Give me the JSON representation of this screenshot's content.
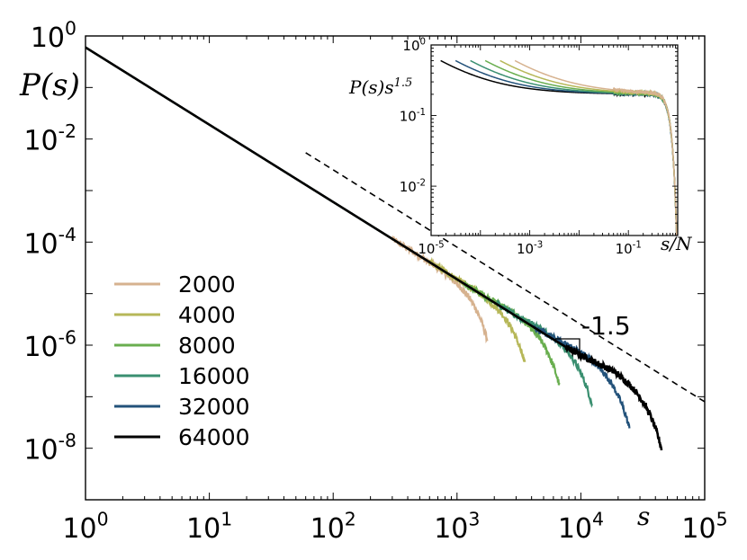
{
  "chart_data": [
    {
      "id": "main",
      "type": "line",
      "xscale": "log",
      "yscale": "log",
      "xlim": [
        1,
        100000
      ],
      "ylim": [
        1e-09,
        1
      ],
      "ylabel": "P(s)",
      "xlabel": "s",
      "x_ticks": [
        {
          "v": 1,
          "base": "10",
          "exp": "0"
        },
        {
          "v": 10,
          "base": "10",
          "exp": "1"
        },
        {
          "v": 100,
          "base": "10",
          "exp": "2"
        },
        {
          "v": 1000,
          "base": "10",
          "exp": "3"
        },
        {
          "v": 10000,
          "base": "10",
          "exp": "4"
        },
        {
          "v": 100000,
          "base": "10",
          "exp": "5"
        }
      ],
      "y_ticks": [
        {
          "v": 1,
          "base": "10",
          "exp": "0"
        },
        {
          "v": 0.01,
          "base": "10",
          "exp": "-2"
        },
        {
          "v": 0.0001,
          "base": "10",
          "exp": "-4"
        },
        {
          "v": 1e-06,
          "base": "10",
          "exp": "-6"
        },
        {
          "v": 1e-08,
          "base": "10",
          "exp": "-8"
        }
      ],
      "power_law_exponent": -1.5,
      "amplitude": 0.6,
      "series": [
        {
          "name": "2000",
          "N": 2000,
          "color": "#d6b28f",
          "cutoff_s": 1500
        },
        {
          "name": "4000",
          "N": 4000,
          "color": "#b6b758",
          "cutoff_s": 3000
        },
        {
          "name": "8000",
          "N": 8000,
          "color": "#69ae4f",
          "cutoff_s": 5700
        },
        {
          "name": "16000",
          "N": 16000,
          "color": "#3a8f70",
          "cutoff_s": 10500
        },
        {
          "name": "32000",
          "N": 32000,
          "color": "#23527a",
          "cutoff_s": 21000
        },
        {
          "name": "64000",
          "N": 64000,
          "color": "#000000",
          "cutoff_s": 38000
        }
      ],
      "reference_line": {
        "style": "dashed",
        "slope": -1.5,
        "s_start": 60,
        "s_end": 100000,
        "annotation": "-1.5"
      }
    },
    {
      "id": "inset",
      "type": "line",
      "xscale": "log",
      "yscale": "log",
      "xlim": [
        1e-05,
        1
      ],
      "ylim": [
        0.002,
        1
      ],
      "ylabel": "P(s)s^1.5",
      "xlabel": "s/N",
      "x_ticks": [
        {
          "v": 1e-05,
          "base": "10",
          "exp": "-5"
        },
        {
          "v": 0.001,
          "base": "10",
          "exp": "-3"
        },
        {
          "v": 0.1,
          "base": "10",
          "exp": "-1"
        }
      ],
      "y_ticks": [
        {
          "v": 1,
          "base": "10",
          "exp": "0"
        },
        {
          "v": 0.1,
          "base": "10",
          "exp": "-1"
        },
        {
          "v": 0.01,
          "base": "10",
          "exp": "-2"
        }
      ],
      "plateau": 0.2,
      "cutoff_ratio": 0.7
    }
  ]
}
